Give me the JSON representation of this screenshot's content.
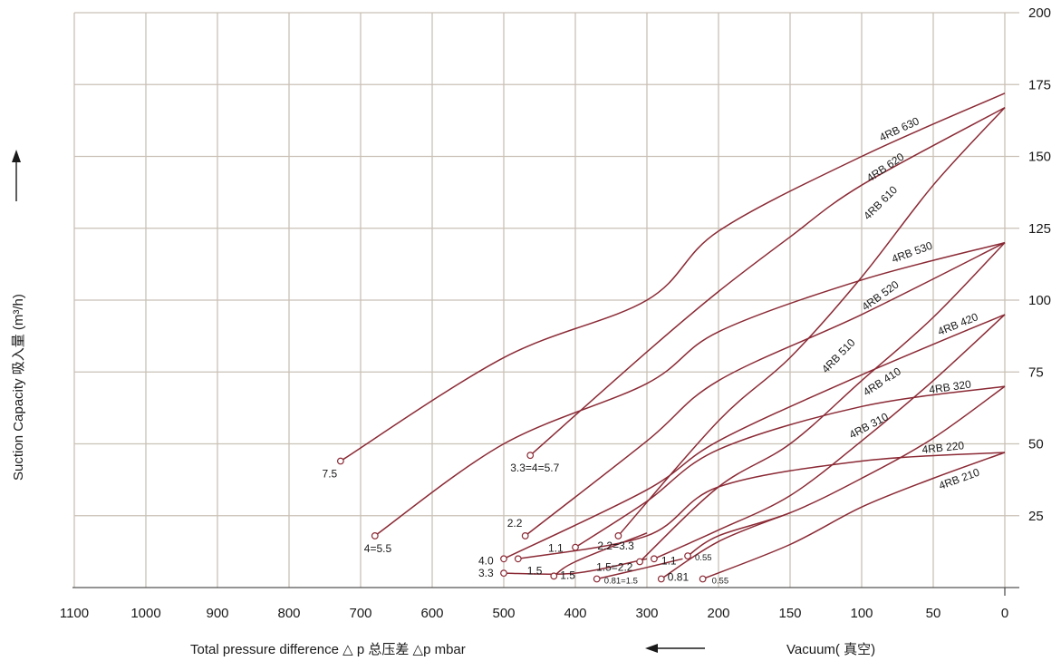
{
  "chart_data": {
    "type": "line",
    "xlabel": "Total pressure difference △ p 总压差 △p mbar",
    "vacuum_label": "Vacuum( 真空)",
    "ylabel": "Suction Capacity 吸入量 (m³/h)",
    "x_ticks": [
      1100,
      1000,
      900,
      800,
      700,
      600,
      500,
      400,
      300,
      200,
      150,
      100,
      50,
      0
    ],
    "y_ticks": [
      25,
      50,
      75,
      100,
      125,
      150,
      175,
      200
    ],
    "ylim": [
      0,
      200
    ],
    "grid": true,
    "colors": {
      "curve": "#8b2a35",
      "grid": "#c9c1b6",
      "axis": "#555555",
      "text": "#1a1a1a"
    },
    "series": [
      {
        "name": "4RB 630",
        "points": [
          [
            0,
            172
          ],
          [
            100,
            150
          ],
          [
            200,
            124
          ],
          [
            300,
            100
          ],
          [
            500,
            80
          ],
          [
            728,
            44
          ]
        ],
        "end_label": "7.5"
      },
      {
        "name": "4RB 620",
        "points": [
          [
            0,
            167
          ],
          [
            100,
            140
          ],
          [
            150,
            122
          ],
          [
            200,
            103
          ],
          [
            300,
            82
          ],
          [
            463,
            46
          ]
        ],
        "end_label": "3.3=4=5.7"
      },
      {
        "name": "4RB 610",
        "points": [
          [
            0,
            167
          ],
          [
            50,
            140
          ],
          [
            100,
            108
          ],
          [
            150,
            80
          ],
          [
            200,
            58
          ],
          [
            340,
            18
          ]
        ],
        "end_label": "2.2=3.3"
      },
      {
        "name": "4RB 530",
        "points": [
          [
            0,
            120
          ],
          [
            100,
            107
          ],
          [
            200,
            89
          ],
          [
            300,
            71
          ],
          [
            500,
            50
          ],
          [
            680,
            18
          ]
        ],
        "end_label": "4=5.5"
      },
      {
        "name": "4RB 520",
        "points": [
          [
            0,
            120
          ],
          [
            100,
            95
          ],
          [
            200,
            72
          ],
          [
            300,
            51
          ],
          [
            470,
            18
          ]
        ],
        "end_label": "2.2"
      },
      {
        "name": "4RB 510",
        "points": [
          [
            0,
            120
          ],
          [
            50,
            94
          ],
          [
            100,
            72
          ],
          [
            150,
            50
          ],
          [
            200,
            35
          ],
          [
            310,
            9
          ]
        ],
        "end_label": "1.5=2.2"
      },
      {
        "name": "4RB 420",
        "points": [
          [
            0,
            95
          ],
          [
            100,
            74
          ],
          [
            200,
            51
          ],
          [
            300,
            34
          ],
          [
            500,
            10
          ]
        ],
        "end_label": "4.0"
      },
      {
        "name": "4RB 410",
        "points": [
          [
            0,
            95
          ],
          [
            50,
            72
          ],
          [
            100,
            51
          ],
          [
            150,
            32
          ],
          [
            200,
            20
          ],
          [
            290,
            10
          ]
        ],
        "end_label": "1.1"
      },
      {
        "name": "4RB 320",
        "points": [
          [
            0,
            70
          ],
          [
            100,
            63
          ],
          [
            200,
            48
          ],
          [
            300,
            30
          ],
          [
            400,
            14
          ]
        ],
        "end_label": "1.1"
      },
      {
        "name": "4RB 310",
        "points": [
          [
            0,
            70
          ],
          [
            50,
            52
          ],
          [
            100,
            38
          ],
          [
            150,
            26
          ],
          [
            200,
            18
          ],
          [
            243,
            11
          ]
        ],
        "end_label": "0.55"
      },
      {
        "name": "4RB 220",
        "points": [
          [
            0,
            47
          ],
          [
            100,
            44
          ],
          [
            200,
            35
          ],
          [
            300,
            18
          ],
          [
            480,
            10
          ]
        ],
        "end_label": "1.5"
      },
      {
        "name": "4RB 210",
        "points": [
          [
            0,
            47
          ],
          [
            50,
            38
          ],
          [
            100,
            28
          ],
          [
            150,
            15
          ],
          [
            222,
            3
          ]
        ],
        "end_label": "0.55"
      },
      {
        "name": "",
        "points": [
          [
            150,
            26
          ],
          [
            200,
            16
          ],
          [
            280,
            3
          ]
        ],
        "end_label": "0.81"
      },
      {
        "name": "",
        "points": [
          [
            300,
            10
          ],
          [
            400,
            5
          ],
          [
            500,
            5
          ]
        ],
        "end_label": "3.3"
      },
      {
        "name": "",
        "points": [
          [
            250,
            10
          ],
          [
            300,
            7
          ],
          [
            370,
            3
          ]
        ],
        "end_label": "0.81=1.5"
      },
      {
        "name": "",
        "points": [
          [
            300,
            19
          ],
          [
            400,
            9
          ],
          [
            430,
            4
          ]
        ],
        "end_label": "1.5"
      }
    ]
  }
}
